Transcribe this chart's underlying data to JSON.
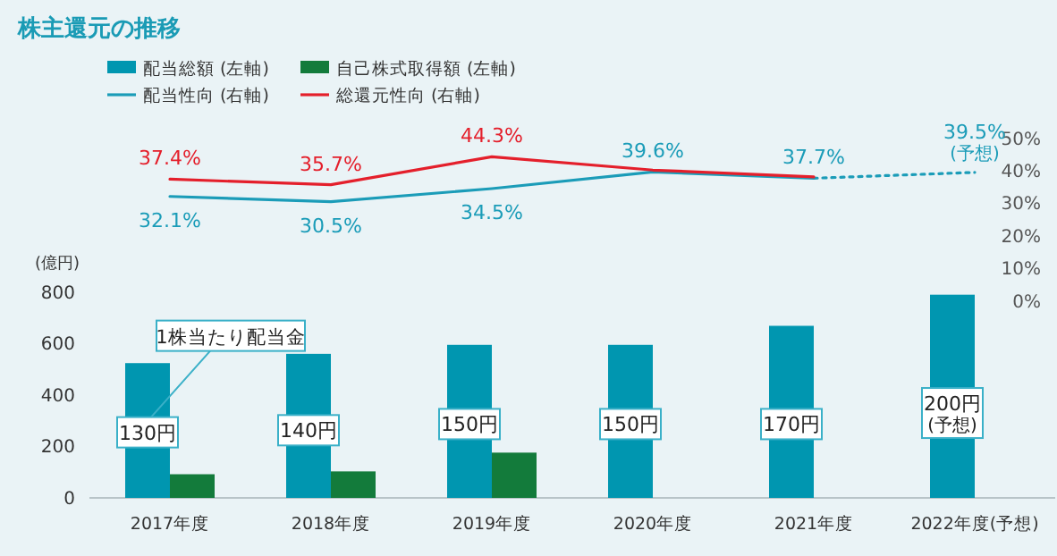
{
  "chart_data": [
    {
      "type": "line",
      "title": "株主還元の推移",
      "legend": "top left",
      "tick_labels": "y",
      "categories": [
        "2017年度",
        "2018年度",
        "2019年度",
        "2020年度",
        "2021年度",
        "2022年度(予想)"
      ],
      "ylim": [
        0,
        50
      ],
      "yticks": [
        {
          "value": 0,
          "label": "0%"
        },
        {
          "value": 10,
          "label": "10%"
        },
        {
          "value": 20,
          "label": "20%"
        },
        {
          "value": 30,
          "label": "30%"
        },
        {
          "value": 40,
          "label": "40%"
        },
        {
          "value": 50,
          "label": "50%"
        }
      ],
      "series": [
        {
          "name": "配当性向 (右軸)",
          "color": "#1b9cb8",
          "values": [
            32.1,
            30.5,
            34.5,
            39.6,
            37.7,
            null
          ],
          "value_labels": [
            "32.1%",
            "30.5%",
            "34.5%",
            "39.6%",
            "37.7%",
            null
          ]
        },
        {
          "color": "#1b9cb8",
          "line_style": "dotted",
          "values": [
            null,
            null,
            null,
            null,
            37.7,
            39.5
          ],
          "value_labels": [
            null,
            null,
            null,
            null,
            null,
            "39.5%(予想)"
          ]
        },
        {
          "name": "総還元性向 (右軸)",
          "color": "#e41f2b",
          "values": [
            37.4,
            35.7,
            44.3,
            40.2,
            38.1,
            null
          ],
          "value_labels": [
            "37.4%",
            "35.7%",
            "44.3%",
            null,
            null,
            null
          ]
        }
      ]
    },
    {
      "type": "bar",
      "ylabel": "(億円)",
      "legend": "top left",
      "categories": [
        "2017年度",
        "2018年度",
        "2019年度",
        "2020年度",
        "2021年度",
        "2022年度(予想)"
      ],
      "ylim": [
        0,
        800
      ],
      "yticks": [
        0,
        200,
        400,
        600,
        800
      ],
      "series": [
        {
          "name": "配当総額 (左軸)",
          "color": "#0096b0",
          "values": [
            524,
            560,
            595,
            595,
            669,
            790
          ]
        },
        {
          "name": "自己株式取得額 (左軸)",
          "color": "#137b3b",
          "values": [
            92,
            103,
            176,
            null,
            null,
            null
          ]
        }
      ],
      "annotations": [
        "1株当たり配当金",
        {
          "text": "130円",
          "x": "2017年度",
          "y": 255
        },
        {
          "text": "140円",
          "x": "2018年度",
          "y": 263
        },
        {
          "text": "150円",
          "x": "2019年度",
          "y": 287
        },
        {
          "text": "150円",
          "x": "2020年度",
          "y": 287
        },
        {
          "text": "170円",
          "x": "2021年度",
          "y": 287
        },
        {
          "text": "200円(予想)",
          "x": "2022年度(予想)",
          "y": 330
        }
      ]
    }
  ]
}
